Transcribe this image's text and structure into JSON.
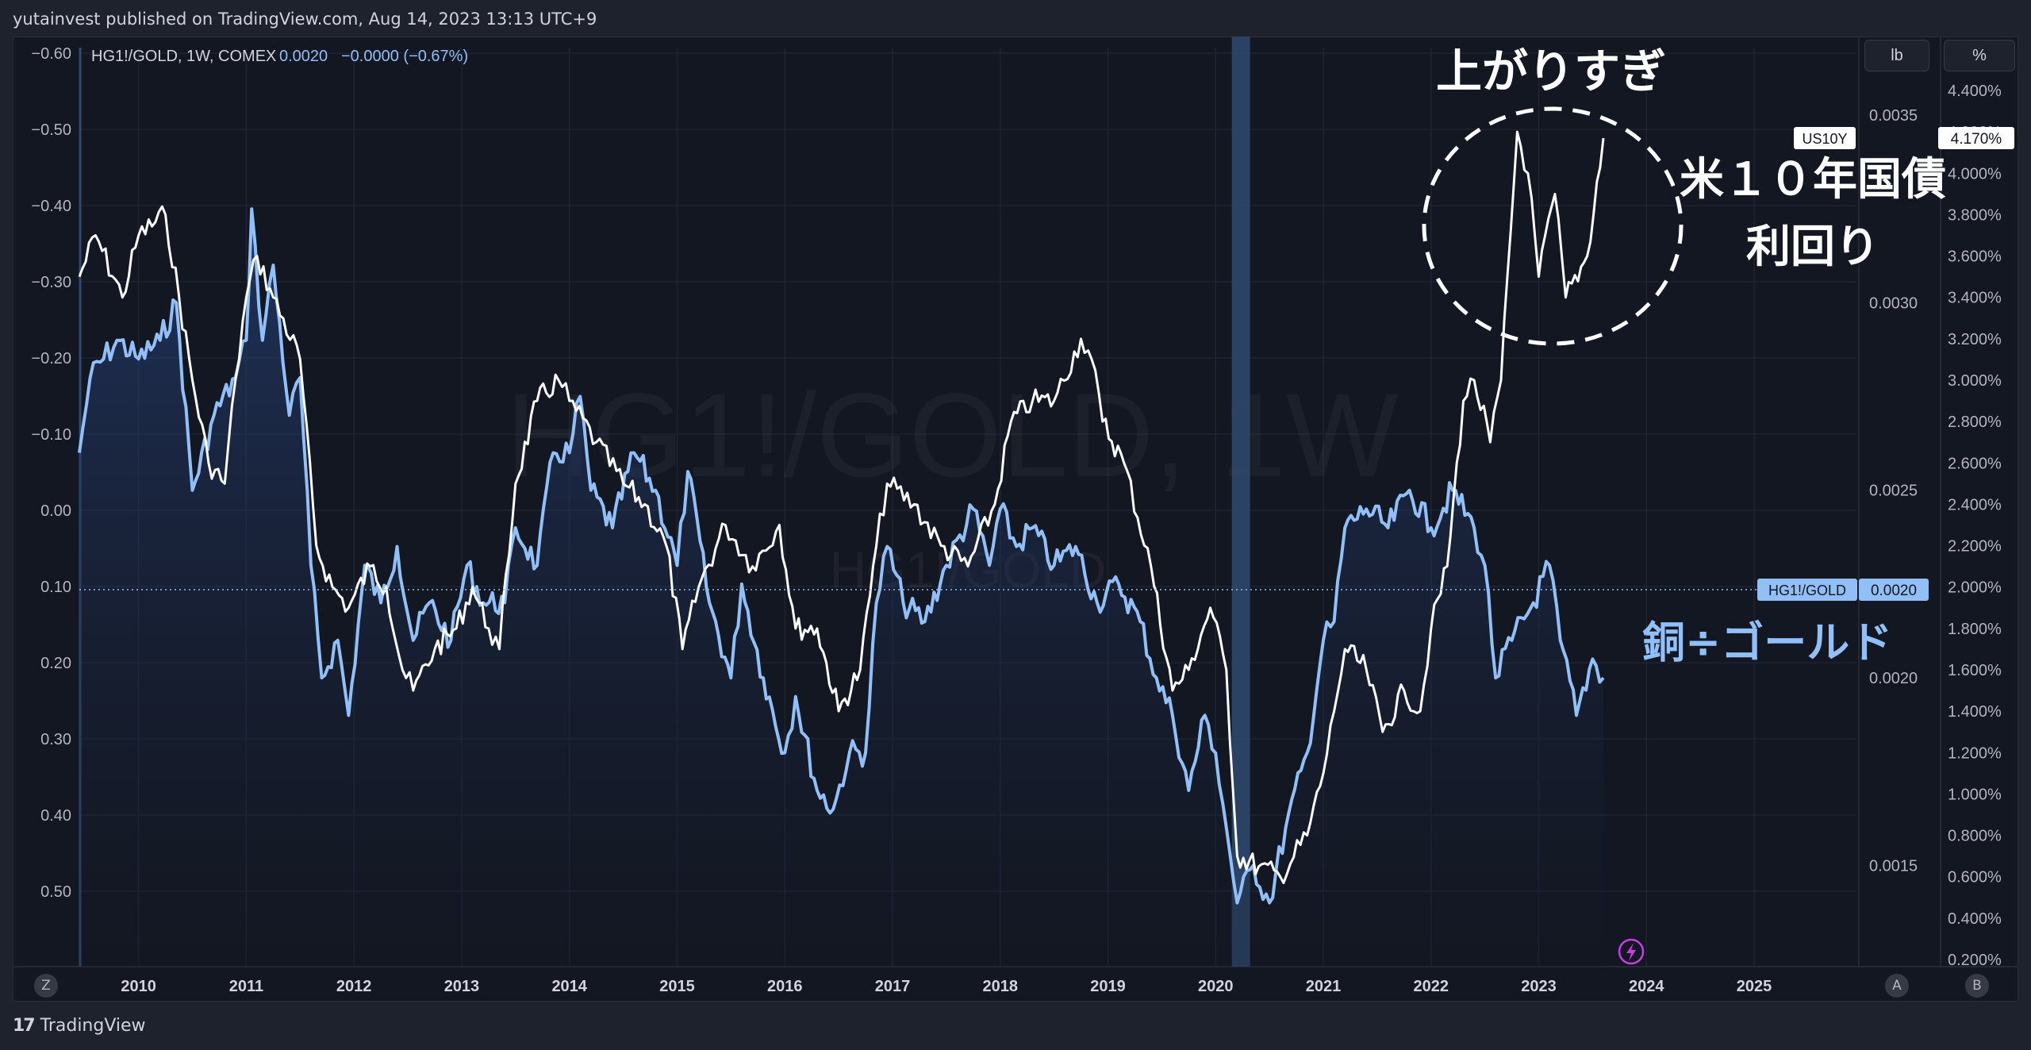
{
  "header": {
    "publisher": "yutainvest published on TradingView.com, Aug 14, 2023 13:13 UTC+9"
  },
  "legend": {
    "symbol": "HG1!/GOLD, 1W, COMEX",
    "value": "0.0020",
    "change": "−0.0000 (−0.67%)"
  },
  "watermark": {
    "main": "HG1!/GOLD, 1W",
    "sub": "HG1!/GOLD"
  },
  "buttons": {
    "unit_lb": "lb",
    "unit_pct": "%",
    "z": "Z",
    "a": "A",
    "b": "B"
  },
  "footer": {
    "brand": "TradingView"
  },
  "annotations": {
    "overshoot": "上がりすぎ",
    "us10y_line1": "米１０年国債",
    "us10y_line2": "利回り",
    "copper_gold": "銅÷ゴールド"
  },
  "colors": {
    "background": "#131722",
    "ratio_line": "#90bff9",
    "us10y_line": "#ffffff",
    "highlight": "#2f4a6e",
    "grid": "#1f2432"
  },
  "chart_data": {
    "type": "line",
    "x_axis": {
      "ticks": [
        "2010",
        "2011",
        "2012",
        "2013",
        "2014",
        "2015",
        "2016",
        "2017",
        "2018",
        "2019",
        "2020",
        "2021",
        "2022",
        "2023",
        "2024",
        "2025"
      ],
      "range": [
        2009.45,
        2025.95
      ]
    },
    "y_axis_left": {
      "ticks": [
        "−0.60",
        "−0.50",
        "−0.40",
        "−0.30",
        "−0.20",
        "−0.10",
        "0.00",
        "0.10",
        "0.20",
        "0.30",
        "0.40",
        "0.50"
      ]
    },
    "y_axis_mid": {
      "ticks": [
        "0.0035",
        "0.0030",
        "0.0025",
        "0.0020",
        "0.0015"
      ],
      "range": [
        0.00123,
        0.00368
      ]
    },
    "y_axis_right": {
      "ticks": [
        "4.400%",
        "4.200%",
        "4.000%",
        "3.800%",
        "3.600%",
        "3.400%",
        "3.200%",
        "3.000%",
        "2.800%",
        "2.600%",
        "2.400%",
        "2.200%",
        "2.000%",
        "1.800%",
        "1.600%",
        "1.400%",
        "1.200%",
        "1.000%",
        "0.800%",
        "0.600%",
        "0.400%",
        "0.200%"
      ],
      "range": [
        0.2,
        4.4
      ]
    },
    "highlight_band": [
      2020.15,
      2020.32
    ],
    "series": [
      {
        "name": "HG1!/GOLD",
        "axis": "mid",
        "last_label": "0.0020",
        "points": [
          [
            2009.45,
            0.0026
          ],
          [
            2009.55,
            0.0028
          ],
          [
            2009.8,
            0.0029
          ],
          [
            2010.0,
            0.00285
          ],
          [
            2010.2,
            0.0029
          ],
          [
            2010.35,
            0.003
          ],
          [
            2010.5,
            0.0025
          ],
          [
            2010.7,
            0.0027
          ],
          [
            2010.9,
            0.0028
          ],
          [
            2011.0,
            0.0029
          ],
          [
            2011.05,
            0.00325
          ],
          [
            2011.15,
            0.0029
          ],
          [
            2011.25,
            0.0031
          ],
          [
            2011.4,
            0.0027
          ],
          [
            2011.5,
            0.0028
          ],
          [
            2011.6,
            0.0023
          ],
          [
            2011.7,
            0.002
          ],
          [
            2011.85,
            0.0021
          ],
          [
            2011.95,
            0.0019
          ],
          [
            2012.1,
            0.0023
          ],
          [
            2012.25,
            0.0022
          ],
          [
            2012.4,
            0.00235
          ],
          [
            2012.55,
            0.0021
          ],
          [
            2012.7,
            0.0022
          ],
          [
            2012.9,
            0.0021
          ],
          [
            2013.05,
            0.0023
          ],
          [
            2013.2,
            0.0022
          ],
          [
            2013.4,
            0.0022
          ],
          [
            2013.5,
            0.0024
          ],
          [
            2013.7,
            0.0023
          ],
          [
            2013.85,
            0.0026
          ],
          [
            2014.0,
            0.0026
          ],
          [
            2014.1,
            0.00275
          ],
          [
            2014.2,
            0.0025
          ],
          [
            2014.4,
            0.0024
          ],
          [
            2014.6,
            0.0026
          ],
          [
            2014.8,
            0.0025
          ],
          [
            2015.0,
            0.0023
          ],
          [
            2015.1,
            0.00255
          ],
          [
            2015.3,
            0.0022
          ],
          [
            2015.5,
            0.002
          ],
          [
            2015.6,
            0.00225
          ],
          [
            2015.8,
            0.002
          ],
          [
            2016.0,
            0.0018
          ],
          [
            2016.1,
            0.00195
          ],
          [
            2016.3,
            0.0017
          ],
          [
            2016.45,
            0.00165
          ],
          [
            2016.6,
            0.0018
          ],
          [
            2016.75,
            0.0018
          ],
          [
            2016.85,
            0.0022
          ],
          [
            2016.95,
            0.00235
          ],
          [
            2017.1,
            0.0022
          ],
          [
            2017.3,
            0.00215
          ],
          [
            2017.5,
            0.0023
          ],
          [
            2017.75,
            0.00245
          ],
          [
            2017.9,
            0.0023
          ],
          [
            2018.0,
            0.00245
          ],
          [
            2018.15,
            0.00235
          ],
          [
            2018.3,
            0.0024
          ],
          [
            2018.5,
            0.0023
          ],
          [
            2018.7,
            0.00235
          ],
          [
            2018.9,
            0.0022
          ],
          [
            2019.1,
            0.00225
          ],
          [
            2019.3,
            0.00215
          ],
          [
            2019.45,
            0.002
          ],
          [
            2019.6,
            0.0019
          ],
          [
            2019.75,
            0.0017
          ],
          [
            2019.9,
            0.0019
          ],
          [
            2020.0,
            0.0018
          ],
          [
            2020.1,
            0.0016
          ],
          [
            2020.2,
            0.0014
          ],
          [
            2020.35,
            0.0015
          ],
          [
            2020.5,
            0.0014
          ],
          [
            2020.65,
            0.0016
          ],
          [
            2020.85,
            0.0018
          ],
          [
            2021.0,
            0.0021
          ],
          [
            2021.1,
            0.00215
          ],
          [
            2021.2,
            0.0024
          ],
          [
            2021.4,
            0.00245
          ],
          [
            2021.6,
            0.0024
          ],
          [
            2021.8,
            0.0025
          ],
          [
            2022.0,
            0.0024
          ],
          [
            2022.2,
            0.0025
          ],
          [
            2022.4,
            0.0024
          ],
          [
            2022.5,
            0.0023
          ],
          [
            2022.6,
            0.002
          ],
          [
            2022.75,
            0.0021
          ],
          [
            2022.95,
            0.0022
          ],
          [
            2023.1,
            0.0023
          ],
          [
            2023.2,
            0.0021
          ],
          [
            2023.35,
            0.0019
          ],
          [
            2023.5,
            0.00205
          ],
          [
            2023.6,
            0.002
          ]
        ]
      },
      {
        "name": "US10Y",
        "axis": "right",
        "last_label": "4.170%",
        "points": [
          [
            2009.45,
            3.5
          ],
          [
            2009.6,
            3.7
          ],
          [
            2009.85,
            3.4
          ],
          [
            2010.0,
            3.7
          ],
          [
            2010.25,
            3.8
          ],
          [
            2010.5,
            3.0
          ],
          [
            2010.65,
            2.6
          ],
          [
            2010.8,
            2.5
          ],
          [
            2010.9,
            3.0
          ],
          [
            2011.0,
            3.4
          ],
          [
            2011.1,
            3.6
          ],
          [
            2011.25,
            3.4
          ],
          [
            2011.5,
            3.1
          ],
          [
            2011.65,
            2.2
          ],
          [
            2011.8,
            2.0
          ],
          [
            2011.95,
            1.9
          ],
          [
            2012.15,
            2.1
          ],
          [
            2012.3,
            2.0
          ],
          [
            2012.45,
            1.6
          ],
          [
            2012.55,
            1.5
          ],
          [
            2012.75,
            1.7
          ],
          [
            2012.95,
            1.8
          ],
          [
            2013.1,
            2.0
          ],
          [
            2013.25,
            1.8
          ],
          [
            2013.35,
            1.7
          ],
          [
            2013.5,
            2.5
          ],
          [
            2013.7,
            2.9
          ],
          [
            2013.9,
            3.0
          ],
          [
            2014.0,
            2.9
          ],
          [
            2014.25,
            2.7
          ],
          [
            2014.5,
            2.5
          ],
          [
            2014.7,
            2.4
          ],
          [
            2014.9,
            2.2
          ],
          [
            2015.05,
            1.7
          ],
          [
            2015.2,
            2.0
          ],
          [
            2015.45,
            2.3
          ],
          [
            2015.7,
            2.1
          ],
          [
            2015.95,
            2.3
          ],
          [
            2016.1,
            1.8
          ],
          [
            2016.3,
            1.8
          ],
          [
            2016.5,
            1.4
          ],
          [
            2016.7,
            1.6
          ],
          [
            2016.85,
            2.2
          ],
          [
            2016.95,
            2.5
          ],
          [
            2017.2,
            2.4
          ],
          [
            2017.45,
            2.2
          ],
          [
            2017.7,
            2.1
          ],
          [
            2017.95,
            2.4
          ],
          [
            2018.1,
            2.8
          ],
          [
            2018.3,
            2.9
          ],
          [
            2018.5,
            2.9
          ],
          [
            2018.75,
            3.2
          ],
          [
            2018.85,
            3.1
          ],
          [
            2018.95,
            2.8
          ],
          [
            2019.15,
            2.6
          ],
          [
            2019.4,
            2.1
          ],
          [
            2019.6,
            1.5
          ],
          [
            2019.75,
            1.6
          ],
          [
            2019.95,
            1.9
          ],
          [
            2020.1,
            1.6
          ],
          [
            2020.2,
            0.7
          ],
          [
            2020.4,
            0.65
          ],
          [
            2020.6,
            0.6
          ],
          [
            2020.85,
            0.8
          ],
          [
            2021.0,
            1.1
          ],
          [
            2021.1,
            1.4
          ],
          [
            2021.2,
            1.7
          ],
          [
            2021.4,
            1.6
          ],
          [
            2021.55,
            1.3
          ],
          [
            2021.75,
            1.5
          ],
          [
            2021.9,
            1.4
          ],
          [
            2022.0,
            1.8
          ],
          [
            2022.15,
            2.1
          ],
          [
            2022.3,
            2.9
          ],
          [
            2022.4,
            3.0
          ],
          [
            2022.55,
            2.7
          ],
          [
            2022.65,
            3.0
          ],
          [
            2022.8,
            4.2
          ],
          [
            2022.9,
            4.0
          ],
          [
            2023.0,
            3.5
          ],
          [
            2023.15,
            3.9
          ],
          [
            2023.25,
            3.4
          ],
          [
            2023.45,
            3.6
          ],
          [
            2023.6,
            4.17
          ]
        ]
      }
    ]
  }
}
